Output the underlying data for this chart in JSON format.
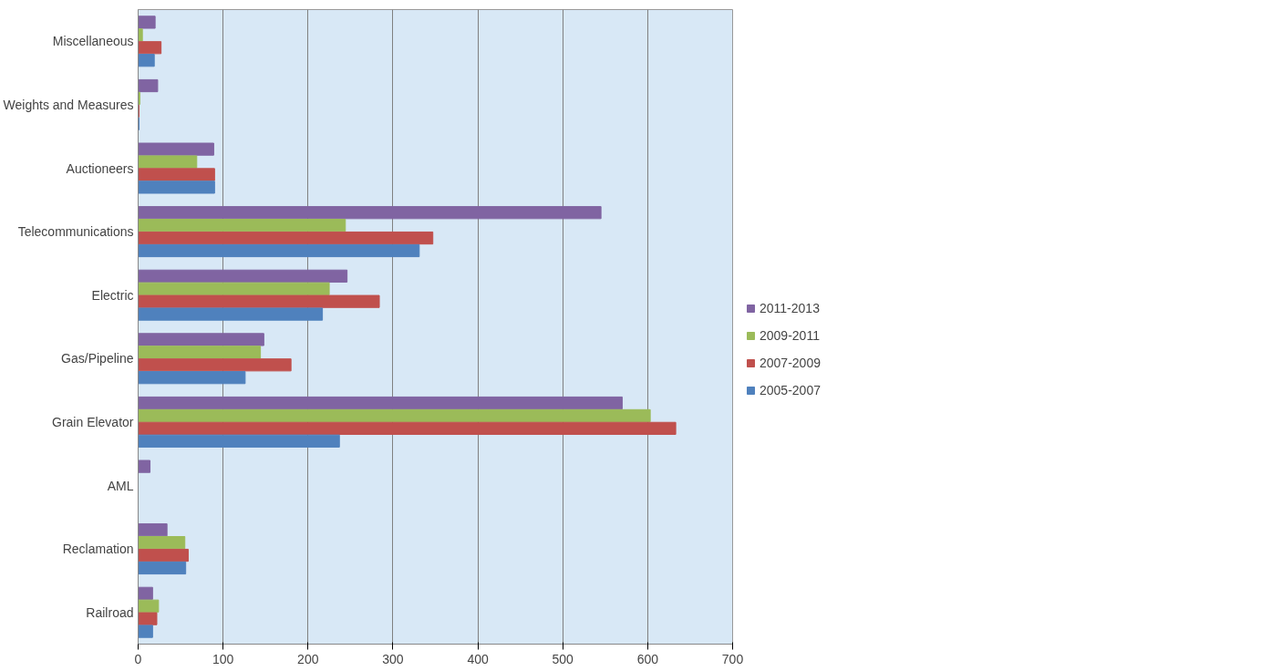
{
  "chart_data": {
    "type": "bar",
    "orientation": "horizontal",
    "categories": [
      "Miscellaneous",
      "Weights and Measures",
      "Auctioneers",
      "Telecommunications",
      "Electric",
      "Gas/Pipeline",
      "Grain Elevator",
      "AML",
      "Reclamation",
      "Railroad"
    ],
    "series": [
      {
        "name": "2011-2013",
        "color": "#8064a2",
        "values": [
          20,
          23,
          89,
          545,
          246,
          148,
          570,
          14,
          34,
          17
        ]
      },
      {
        "name": "2009-2011",
        "color": "#9bbb59",
        "values": [
          5,
          2,
          69,
          244,
          225,
          144,
          603,
          0,
          55,
          24
        ]
      },
      {
        "name": "2007-2009",
        "color": "#c0504d",
        "values": [
          27,
          1,
          90,
          347,
          284,
          180,
          633,
          0,
          59,
          22
        ]
      },
      {
        "name": "2005-2007",
        "color": "#4f81bd",
        "values": [
          19,
          1,
          90,
          331,
          217,
          126,
          237,
          0,
          56,
          17
        ]
      }
    ],
    "xlim": [
      0,
      700
    ],
    "xticks": [
      0,
      100,
      200,
      300,
      400,
      500,
      600,
      700
    ],
    "grid": "x",
    "legend": "right"
  }
}
